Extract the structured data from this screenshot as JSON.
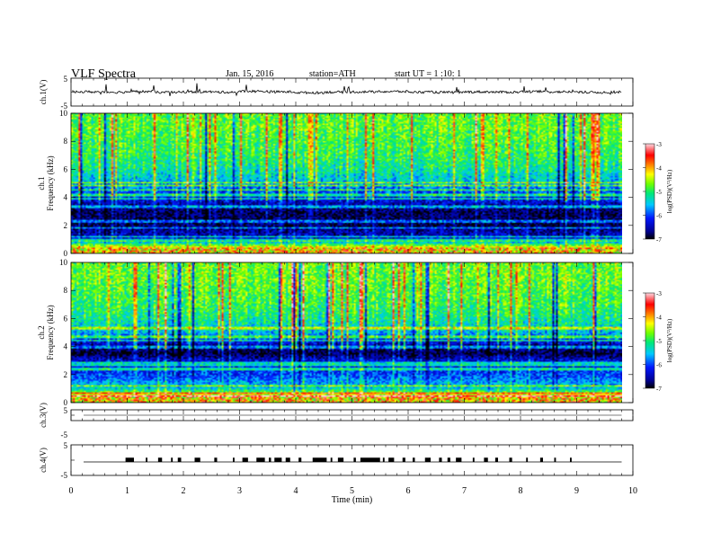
{
  "header": {
    "title": "VLF Spectra",
    "date": "Jan. 15, 2016",
    "station": "station=ATH",
    "start": "start UT =  1 :10: 1"
  },
  "chart_data": [
    {
      "type": "line",
      "ylabel": "ch.1(V)",
      "ylim": [
        -5,
        5
      ],
      "yticks": [
        "5",
        "-5"
      ],
      "xlim": [
        0,
        10
      ],
      "description": "Waveform amplitude near 0 V with small noisy fluctuations and spikes across the record.",
      "sample_values_every_0_5min": [
        0.1,
        0.0,
        0.2,
        -0.1,
        0.1,
        0.0,
        0.3,
        0.1,
        -0.2,
        0.0,
        0.1,
        0.2,
        0.0,
        -0.1,
        0.1,
        0.0,
        0.2,
        0.1,
        -0.1,
        0.0
      ]
    },
    {
      "type": "heatmap",
      "ylabel": "ch.1 Frequency (kHz)",
      "ylim": [
        0,
        10
      ],
      "yticks": [
        "0",
        "2",
        "4",
        "6",
        "8",
        "10"
      ],
      "xlim": [
        0,
        10
      ],
      "data_end_min": 9.8,
      "colorbar": {
        "label": "log(PSD)(V²/Hz)",
        "range": [
          -7,
          -3
        ],
        "ticks": [
          "-3",
          "-4",
          "-5",
          "-6",
          "-7"
        ]
      },
      "frequency_profile_kHz": [
        {
          "kHz": 0.25,
          "logPSD": -3.5
        },
        {
          "kHz": 1.0,
          "logPSD": -6.3
        },
        {
          "kHz": 2.0,
          "logPSD": -6.8
        },
        {
          "kHz": 3.0,
          "logPSD": -6.8
        },
        {
          "kHz": 4.0,
          "logPSD": -6.2
        },
        {
          "kHz": 5.0,
          "logPSD": -5.6
        },
        {
          "kHz": 6.0,
          "logPSD": -5.2
        },
        {
          "kHz": 7.0,
          "logPSD": -5.0
        },
        {
          "kHz": 8.0,
          "logPSD": -4.9
        },
        {
          "kHz": 9.0,
          "logPSD": -4.8
        },
        {
          "kHz": 10.0,
          "logPSD": -4.8
        }
      ]
    },
    {
      "type": "heatmap",
      "ylabel": "ch.2 Frequency (kHz)",
      "ylim": [
        0,
        10
      ],
      "yticks": [
        "0",
        "2",
        "4",
        "6",
        "8",
        "10"
      ],
      "xlim": [
        0,
        10
      ],
      "data_end_min": 9.8,
      "colorbar": {
        "label": "log(PSD)(V²/Hz)",
        "range": [
          -7,
          -3
        ],
        "ticks": [
          "-3",
          "-4",
          "-5",
          "-6",
          "-7"
        ]
      },
      "frequency_profile_kHz": [
        {
          "kHz": 0.25,
          "logPSD": -3.5
        },
        {
          "kHz": 1.0,
          "logPSD": -5.4
        },
        {
          "kHz": 2.0,
          "logPSD": -6.0
        },
        {
          "kHz": 3.0,
          "logPSD": -6.3
        },
        {
          "kHz": 3.5,
          "logPSD": -6.9
        },
        {
          "kHz": 4.0,
          "logPSD": -6.6
        },
        {
          "kHz": 5.0,
          "logPSD": -5.5
        },
        {
          "kHz": 6.0,
          "logPSD": -5.1
        },
        {
          "kHz": 7.0,
          "logPSD": -4.9
        },
        {
          "kHz": 8.0,
          "logPSD": -4.8
        },
        {
          "kHz": 9.0,
          "logPSD": -4.7
        },
        {
          "kHz": 10.0,
          "logPSD": -4.7
        }
      ]
    },
    {
      "type": "line",
      "ylabel": "ch.3(V)",
      "ylim": [
        -5,
        5
      ],
      "yticks": [
        "5",
        "-5"
      ],
      "xlim": [
        0,
        10
      ],
      "description": "Flat trace near 0 V.",
      "level_V": 0
    },
    {
      "type": "line",
      "ylabel": "ch.4(V)",
      "ylim": [
        -5,
        5
      ],
      "yticks": [
        "5",
        "-5"
      ],
      "xlim": [
        0,
        10
      ],
      "xlabel": "Time (min)",
      "xticks": [
        "0",
        "1",
        "2",
        "3",
        "4",
        "5",
        "6",
        "7",
        "8",
        "9",
        "10"
      ],
      "baseline_V": 0,
      "pulse_level_V": 0.8,
      "pulse_intervals_min": [
        [
          0.97,
          1.12
        ],
        [
          1.33,
          1.36
        ],
        [
          1.55,
          1.62
        ],
        [
          1.78,
          1.81
        ],
        [
          1.9,
          1.96
        ],
        [
          2.2,
          2.3
        ],
        [
          2.55,
          2.6
        ],
        [
          2.88,
          2.91
        ],
        [
          3.05,
          3.15
        ],
        [
          3.3,
          3.45
        ],
        [
          3.52,
          3.56
        ],
        [
          3.62,
          3.75
        ],
        [
          3.82,
          3.9
        ],
        [
          4.05,
          4.1
        ],
        [
          4.3,
          4.55
        ],
        [
          4.62,
          4.65
        ],
        [
          4.75,
          4.85
        ],
        [
          5.03,
          5.07
        ],
        [
          5.15,
          5.5
        ],
        [
          5.55,
          5.58
        ],
        [
          5.65,
          5.75
        ],
        [
          5.9,
          5.95
        ],
        [
          6.08,
          6.12
        ],
        [
          6.3,
          6.4
        ],
        [
          6.55,
          6.6
        ],
        [
          6.7,
          6.75
        ],
        [
          6.85,
          6.95
        ],
        [
          7.15,
          7.18
        ],
        [
          7.35,
          7.42
        ],
        [
          7.55,
          7.6
        ],
        [
          7.8,
          7.85
        ],
        [
          8.1,
          8.13
        ],
        [
          8.35,
          8.4
        ],
        [
          8.6,
          8.63
        ],
        [
          8.88,
          8.91
        ]
      ]
    }
  ]
}
